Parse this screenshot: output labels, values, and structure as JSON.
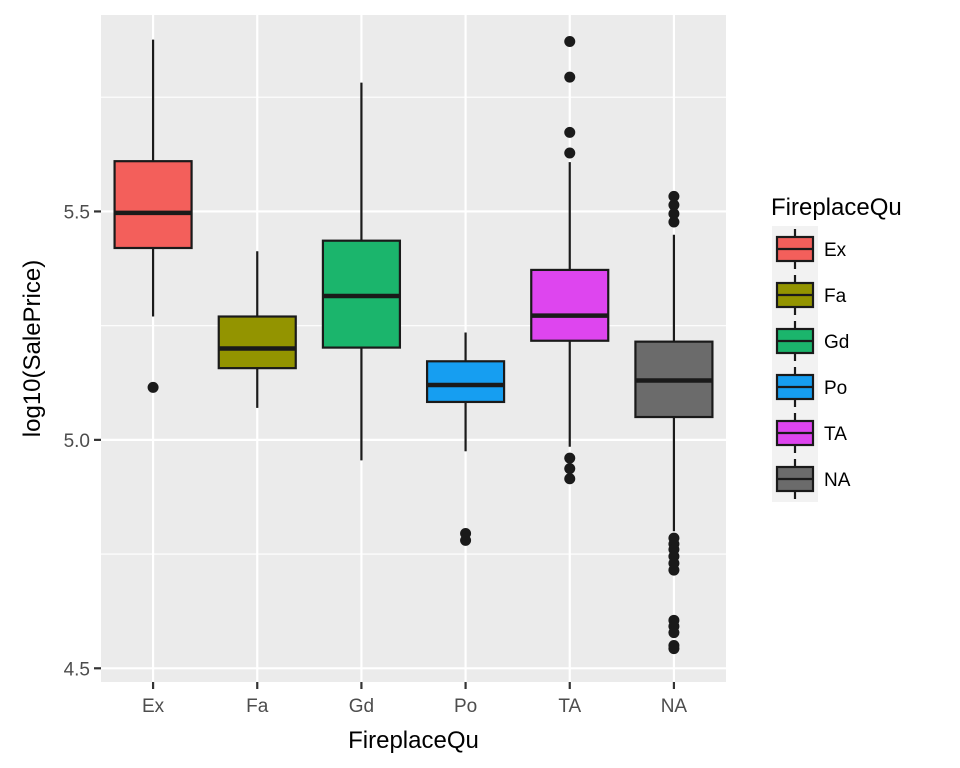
{
  "chart_data": {
    "type": "boxplot",
    "xlabel": "FireplaceQu",
    "ylabel": "log10(SalePrice)",
    "categories": [
      "Ex",
      "Fa",
      "Gd",
      "Po",
      "TA",
      "NA"
    ],
    "ylim": [
      4.47,
      5.93
    ],
    "y_ticks": [
      4.5,
      5.0,
      5.5
    ],
    "y_tick_labels": [
      "4.5",
      "5.0",
      "5.5"
    ],
    "grid": true,
    "legend": {
      "title": "FireplaceQu",
      "position": "right",
      "entries": [
        "Ex",
        "Fa",
        "Gd",
        "Po",
        "TA",
        "NA"
      ]
    },
    "colors": {
      "Ex": "#f8766d",
      "Fa": "#b79f00",
      "Gd": "#00ba38",
      "Po": "#00bfc4",
      "TA": "#619cff",
      "NA": "#f564e3"
    },
    "boxes": [
      {
        "category": "Ex",
        "color": "#f35f5b",
        "whisker_low": 5.27,
        "q1": 5.42,
        "median": 5.497,
        "q3": 5.61,
        "whisker_high": 5.876,
        "outliers": [
          5.115
        ]
      },
      {
        "category": "Fa",
        "color": "#939400",
        "whisker_low": 5.07,
        "q1": 5.157,
        "median": 5.2,
        "q3": 5.27,
        "whisker_high": 5.413,
        "outliers": []
      },
      {
        "category": "Gd",
        "color": "#1bb56c",
        "whisker_low": 4.955,
        "q1": 5.202,
        "median": 5.315,
        "q3": 5.436,
        "whisker_high": 5.782,
        "outliers": []
      },
      {
        "category": "Po",
        "color": "#169ef1",
        "whisker_low": 4.975,
        "q1": 5.083,
        "median": 5.12,
        "q3": 5.172,
        "whisker_high": 5.235,
        "outliers": [
          4.795,
          4.78
        ]
      },
      {
        "category": "TA",
        "color": "#de45ef",
        "whisker_low": 4.985,
        "q1": 5.217,
        "median": 5.272,
        "q3": 5.372,
        "whisker_high": 5.608,
        "outliers": [
          5.872,
          5.794,
          5.673,
          5.628,
          4.96,
          4.937,
          4.915
        ]
      },
      {
        "category": "NA",
        "color": "#6b6b6b",
        "whisker_low": 4.8,
        "q1": 5.05,
        "median": 5.13,
        "q3": 5.215,
        "whisker_high": 5.449,
        "outliers": [
          5.533,
          5.514,
          5.495,
          5.477,
          4.785,
          4.772,
          4.76,
          4.745,
          4.73,
          4.715,
          4.605,
          4.592,
          4.578,
          4.55,
          4.543
        ]
      }
    ]
  }
}
